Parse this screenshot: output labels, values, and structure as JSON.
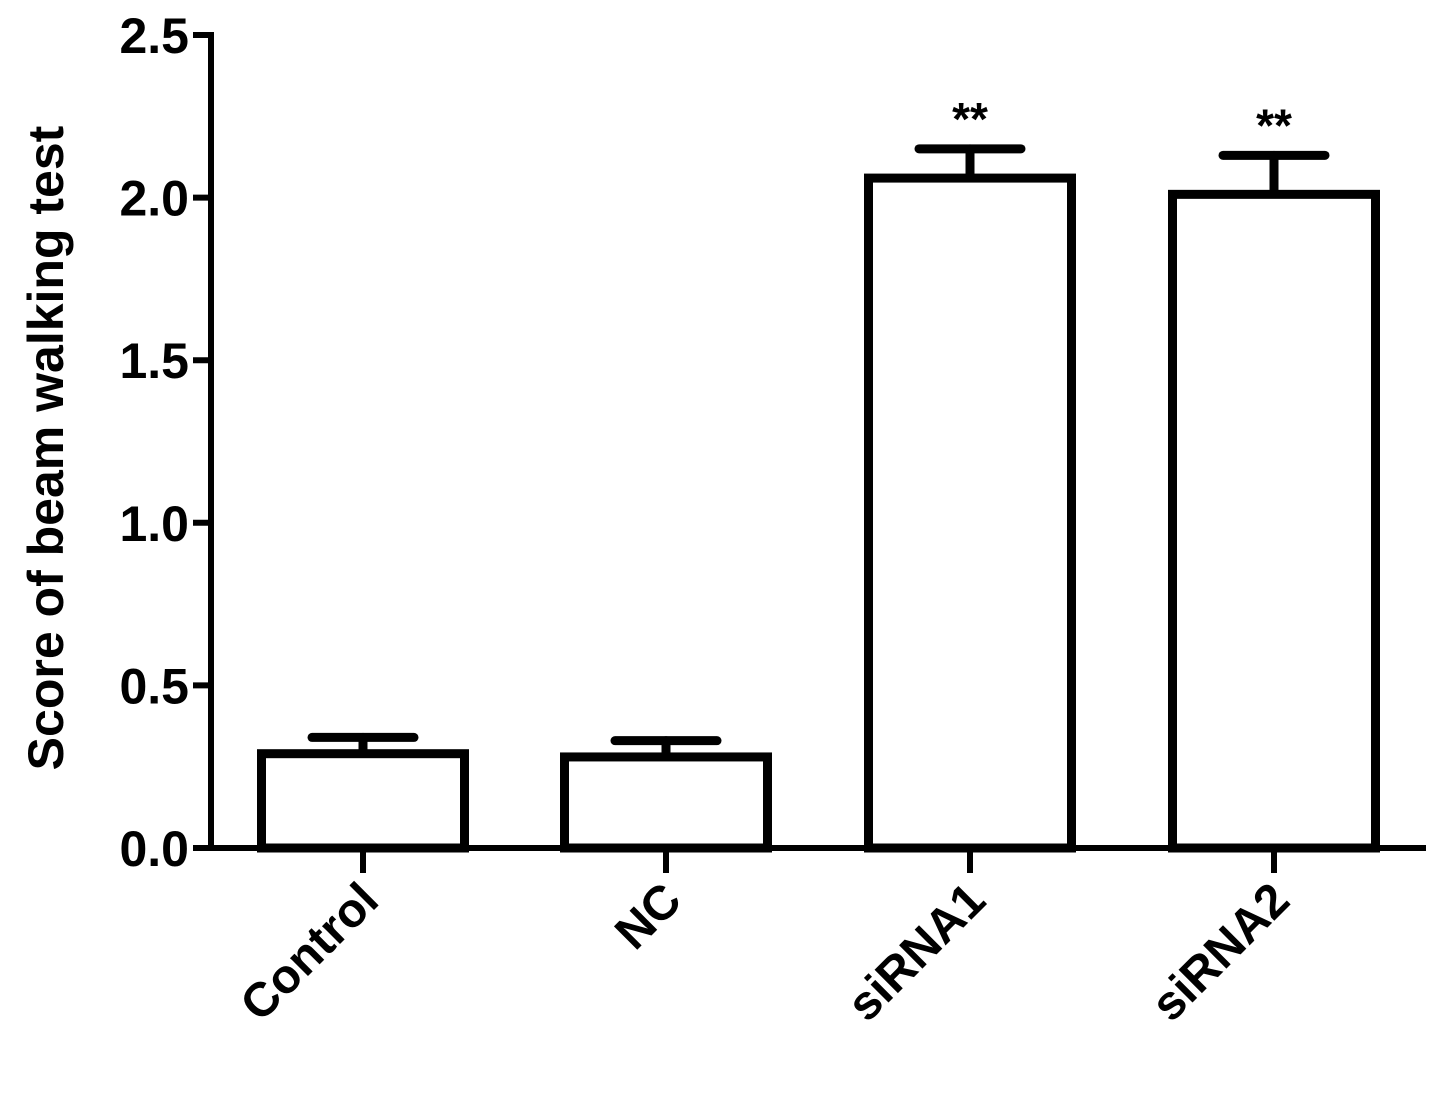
{
  "chart_data": {
    "type": "bar",
    "categories": [
      "Control",
      "NC",
      "siRNA1",
      "siRNA2"
    ],
    "values": [
      0.29,
      0.28,
      2.06,
      2.01
    ],
    "errors": [
      0.05,
      0.05,
      0.09,
      0.12
    ],
    "annotations": [
      "",
      "",
      "**",
      "**"
    ],
    "ylabel": "Score of beam walking test",
    "xlabel": "",
    "ylim": [
      0,
      2.5
    ],
    "yticks": [
      0.0,
      0.5,
      1.0,
      1.5,
      2.0,
      2.5
    ],
    "ytick_labels": [
      "0.0",
      "0.5",
      "1.0",
      "1.5",
      "2.0",
      "2.5"
    ],
    "grid": false,
    "colors": {
      "bar_fill": "#ffffff",
      "bar_stroke": "#000000"
    }
  }
}
